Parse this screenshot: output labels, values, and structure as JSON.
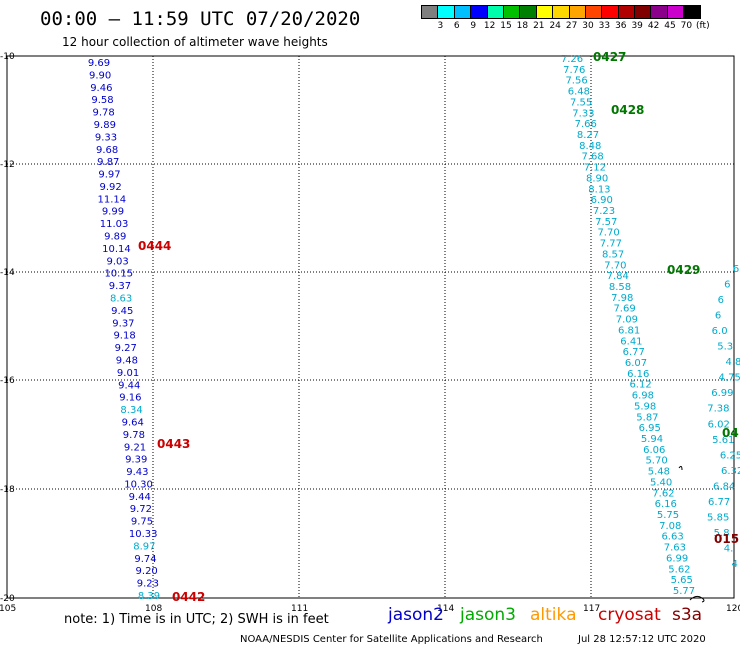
{
  "header": {
    "title": "00:00 – 11:59 UTC 07/20/2020",
    "subtitle": "12 hour collection of altimeter wave heights"
  },
  "color_scale": {
    "labels": [
      "3",
      "6",
      "9",
      "12",
      "15",
      "18",
      "21",
      "24",
      "27",
      "30",
      "33",
      "36",
      "39",
      "42",
      "45",
      "70",
      "(ft)"
    ],
    "colors": [
      "#7f7f7f",
      "#00ffff",
      "#00bfff",
      "#0000ff",
      "#00ffaa",
      "#00c000",
      "#008000",
      "#ffff00",
      "#ffd700",
      "#ffa500",
      "#ff4500",
      "#ff0000",
      "#b00000",
      "#800000",
      "#8b008b",
      "#cc00cc",
      "#000000"
    ]
  },
  "map": {
    "lat_ticks": [
      "-10",
      "-12",
      "-14",
      "-16",
      "-18",
      "-20"
    ],
    "lon_ticks": [
      "105",
      "108",
      "111",
      "114",
      "117",
      "120"
    ],
    "tracks": [
      {
        "sat": "jason2",
        "color": "#0000cc",
        "labels": [
          {
            "text": "0444",
            "color": "#cc0000"
          },
          {
            "text": "0443",
            "color": "#cc0000"
          },
          {
            "text": "0442",
            "color": "#cc0000"
          }
        ],
        "values": [
          "9.69",
          "9.90",
          "9.46",
          "9.58",
          "9.78",
          "9.89",
          "9.33",
          "9.68",
          "9.87",
          "9.97",
          "9.92",
          "11.14",
          "9.99",
          "11.03",
          "9.89",
          "10.14",
          "9.03",
          "10.15",
          "9.37",
          "8.63",
          "9.45",
          "9.37",
          "9.18",
          "9.27",
          "9.48",
          "9.01",
          "9.44",
          "9.16",
          "8.34",
          "9.64",
          "9.78",
          "9.21",
          "9.39",
          "9.43",
          "10.30",
          "9.44",
          "9.72",
          "9.75",
          "10.33",
          "8.97",
          "9.74",
          "9.20",
          "9.23",
          "8.39"
        ]
      },
      {
        "sat": "jason3",
        "color": "#00aacc",
        "labels": [
          {
            "text": "0427",
            "color": "#007700"
          },
          {
            "text": "0428",
            "color": "#007700"
          },
          {
            "text": "0429",
            "color": "#007700"
          }
        ],
        "values": [
          "7.26",
          "7.76",
          "7.56",
          "6.48",
          "7.55",
          "7.33",
          "7.66",
          "8.27",
          "8.48",
          "7.68",
          "7.12",
          "8.90",
          "8.13",
          "6.90",
          "7.23",
          "7.57",
          "7.70",
          "7.77",
          "8.57",
          "7.70",
          "7.84",
          "8.58",
          "7.98",
          "7.69",
          "7.09",
          "6.81",
          "6.41",
          "6.77",
          "6.07",
          "6.16",
          "6.12",
          "6.98",
          "5.98",
          "5.87",
          "6.95",
          "5.94",
          "6.06",
          "5.70",
          "5.48",
          "5.40",
          "7.62",
          "6.16",
          "5.75",
          "7.08",
          "6.63",
          "7.63",
          "6.99",
          "5.62",
          "5.65",
          "5.77"
        ]
      },
      {
        "sat": "s3a",
        "color": "#00aacc",
        "labels": [
          {
            "text": "04",
            "color": "#007700"
          },
          {
            "text": "015",
            "color": "#800000"
          }
        ],
        "values": [
          "6",
          "6",
          "6",
          "6",
          "6.0",
          "5.3",
          "4.8",
          "4.75",
          "6.99",
          "7.38",
          "6.02",
          "5.61",
          "6.25",
          "6.32",
          "6.84",
          "6.77",
          "5.85",
          "5.8",
          "4.",
          "4"
        ]
      }
    ]
  },
  "footer": {
    "note": "note:  1) Time is in UTC;  2) SWH is in feet",
    "legend": [
      {
        "name": "jason2",
        "color": "#0000cc"
      },
      {
        "name": "jason3",
        "color": "#00aa00"
      },
      {
        "name": "altika",
        "color": "#ff9900"
      },
      {
        "name": "cryosat",
        "color": "#cc0000"
      },
      {
        "name": "s3a",
        "color": "#800000"
      }
    ],
    "credit": "NOAA/NESDIS Center for Satellite Applications and Research",
    "timestamp": "Jul 28 12:57:12 UTC 2020"
  }
}
